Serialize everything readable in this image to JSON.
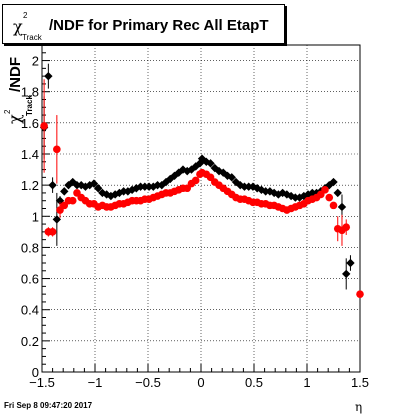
{
  "chart_data": {
    "type": "scatter",
    "title": {
      "prefix": "χ",
      "sup": "2",
      "sub": "Track",
      "text": "/NDF for Primary Rec All EtapT"
    },
    "ylabel": {
      "prefix": "χ",
      "sup": "2",
      "sub": "Track",
      "text": "/NDF"
    },
    "xlabel": "η",
    "xlim": [
      -1.5,
      1.5
    ],
    "ylim": [
      0,
      2.1
    ],
    "x_ticks": [
      -1.5,
      -1,
      -0.5,
      0,
      0.5,
      1,
      1.5
    ],
    "x_tick_labels": [
      "−1.5",
      "−1",
      "−0.5",
      "0",
      "0.5",
      "1",
      "1.5"
    ],
    "y_ticks": [
      0,
      0.2,
      0.4,
      0.6,
      0.8,
      1,
      1.2,
      1.4,
      1.6,
      1.8,
      2
    ],
    "y_tick_labels": [
      "0",
      "0.2",
      "0.4",
      "0.6",
      "0.8",
      "1",
      "1.2",
      "1.4",
      "1.6",
      "1.8",
      "2"
    ],
    "grid": true,
    "series": [
      {
        "color": "#000000",
        "x": [
          -1.48,
          -1.44,
          -1.4,
          -1.36,
          -1.33,
          -1.29,
          -1.25,
          -1.21,
          -1.17,
          -1.13,
          -1.09,
          -1.05,
          -1.01,
          -0.97,
          -0.93,
          -0.89,
          -0.85,
          -0.81,
          -0.77,
          -0.73,
          -0.69,
          -0.65,
          -0.61,
          -0.57,
          -0.53,
          -0.49,
          -0.45,
          -0.41,
          -0.37,
          -0.33,
          -0.29,
          -0.25,
          -0.21,
          -0.17,
          -0.13,
          -0.09,
          -0.05,
          -0.01,
          0.01,
          0.05,
          0.09,
          0.13,
          0.17,
          0.21,
          0.25,
          0.29,
          0.33,
          0.37,
          0.41,
          0.45,
          0.49,
          0.53,
          0.57,
          0.61,
          0.65,
          0.69,
          0.73,
          0.77,
          0.81,
          0.85,
          0.89,
          0.93,
          0.97,
          1.01,
          1.05,
          1.09,
          1.13,
          1.17,
          1.21,
          1.25,
          1.29,
          1.33,
          1.37,
          1.41
        ],
        "y": [
          1.57,
          1.9,
          1.2,
          0.98,
          1.1,
          1.16,
          1.2,
          1.22,
          1.2,
          1.2,
          1.19,
          1.2,
          1.21,
          1.18,
          1.15,
          1.14,
          1.13,
          1.14,
          1.15,
          1.16,
          1.16,
          1.17,
          1.18,
          1.19,
          1.19,
          1.19,
          1.19,
          1.2,
          1.2,
          1.22,
          1.24,
          1.26,
          1.28,
          1.3,
          1.29,
          1.3,
          1.32,
          1.34,
          1.37,
          1.35,
          1.34,
          1.31,
          1.29,
          1.28,
          1.26,
          1.25,
          1.22,
          1.2,
          1.19,
          1.19,
          1.19,
          1.18,
          1.17,
          1.16,
          1.16,
          1.15,
          1.14,
          1.15,
          1.14,
          1.13,
          1.12,
          1.12,
          1.13,
          1.14,
          1.15,
          1.15,
          1.16,
          1.18,
          1.2,
          1.22,
          1.15,
          1.06,
          0.63,
          0.7
        ],
        "err": [
          0.2,
          0.08,
          0.05,
          0.17,
          0.03,
          0.02,
          0.02,
          0.02,
          0.02,
          0.02,
          0.02,
          0.02,
          0.02,
          0.02,
          0.02,
          0.02,
          0.02,
          0.02,
          0.02,
          0.02,
          0.02,
          0.02,
          0.02,
          0.02,
          0.02,
          0.02,
          0.02,
          0.02,
          0.02,
          0.02,
          0.02,
          0.02,
          0.02,
          0.02,
          0.02,
          0.02,
          0.02,
          0.02,
          0.02,
          0.02,
          0.02,
          0.02,
          0.02,
          0.02,
          0.02,
          0.02,
          0.02,
          0.02,
          0.02,
          0.02,
          0.02,
          0.02,
          0.02,
          0.02,
          0.02,
          0.02,
          0.02,
          0.02,
          0.02,
          0.02,
          0.02,
          0.02,
          0.02,
          0.02,
          0.02,
          0.02,
          0.02,
          0.02,
          0.02,
          0.02,
          0.02,
          0.08,
          0.1,
          0.05
        ]
      },
      {
        "color": "#ff0000",
        "x": [
          -1.48,
          -1.44,
          -1.4,
          -1.36,
          -1.33,
          -1.29,
          -1.25,
          -1.21,
          -1.17,
          -1.13,
          -1.09,
          -1.05,
          -1.01,
          -0.97,
          -0.93,
          -0.89,
          -0.85,
          -0.81,
          -0.77,
          -0.73,
          -0.69,
          -0.65,
          -0.61,
          -0.57,
          -0.53,
          -0.49,
          -0.45,
          -0.41,
          -0.37,
          -0.33,
          -0.29,
          -0.25,
          -0.21,
          -0.17,
          -0.13,
          -0.09,
          -0.05,
          -0.01,
          0.01,
          0.05,
          0.09,
          0.13,
          0.17,
          0.21,
          0.25,
          0.29,
          0.33,
          0.37,
          0.41,
          0.45,
          0.49,
          0.53,
          0.57,
          0.61,
          0.65,
          0.69,
          0.73,
          0.77,
          0.81,
          0.85,
          0.89,
          0.93,
          0.97,
          1.01,
          1.05,
          1.09,
          1.13,
          1.17,
          1.21,
          1.25,
          1.29,
          1.33,
          1.37,
          1.5
        ],
        "y": [
          1.58,
          0.9,
          0.9,
          1.43,
          1.04,
          1.07,
          1.1,
          1.1,
          1.15,
          1.12,
          1.1,
          1.08,
          1.08,
          1.06,
          1.07,
          1.06,
          1.06,
          1.07,
          1.08,
          1.08,
          1.09,
          1.1,
          1.1,
          1.1,
          1.11,
          1.11,
          1.12,
          1.13,
          1.14,
          1.15,
          1.15,
          1.16,
          1.17,
          1.18,
          1.18,
          1.21,
          1.23,
          1.27,
          1.28,
          1.27,
          1.25,
          1.22,
          1.2,
          1.18,
          1.16,
          1.14,
          1.12,
          1.11,
          1.11,
          1.1,
          1.09,
          1.09,
          1.08,
          1.08,
          1.07,
          1.07,
          1.06,
          1.05,
          1.04,
          1.05,
          1.06,
          1.07,
          1.08,
          1.1,
          1.11,
          1.12,
          1.14,
          1.17,
          1.12,
          1.07,
          0.92,
          0.91,
          0.93,
          0.5
        ],
        "err": [
          0.3,
          0.03,
          0.03,
          0.22,
          0.05,
          0.02,
          0.02,
          0.02,
          0.02,
          0.02,
          0.02,
          0.02,
          0.02,
          0.02,
          0.02,
          0.02,
          0.02,
          0.02,
          0.02,
          0.02,
          0.02,
          0.02,
          0.02,
          0.02,
          0.02,
          0.02,
          0.02,
          0.02,
          0.02,
          0.02,
          0.02,
          0.02,
          0.02,
          0.02,
          0.02,
          0.02,
          0.02,
          0.02,
          0.02,
          0.02,
          0.02,
          0.02,
          0.02,
          0.02,
          0.02,
          0.02,
          0.02,
          0.02,
          0.02,
          0.02,
          0.02,
          0.02,
          0.02,
          0.02,
          0.02,
          0.02,
          0.02,
          0.02,
          0.02,
          0.02,
          0.02,
          0.02,
          0.02,
          0.02,
          0.02,
          0.02,
          0.02,
          0.02,
          0.02,
          0.02,
          0.08,
          0.1,
          0.05,
          0.02
        ]
      }
    ]
  },
  "footer": {
    "timestamp": "Fri Sep  8 09:47:20 2017"
  }
}
